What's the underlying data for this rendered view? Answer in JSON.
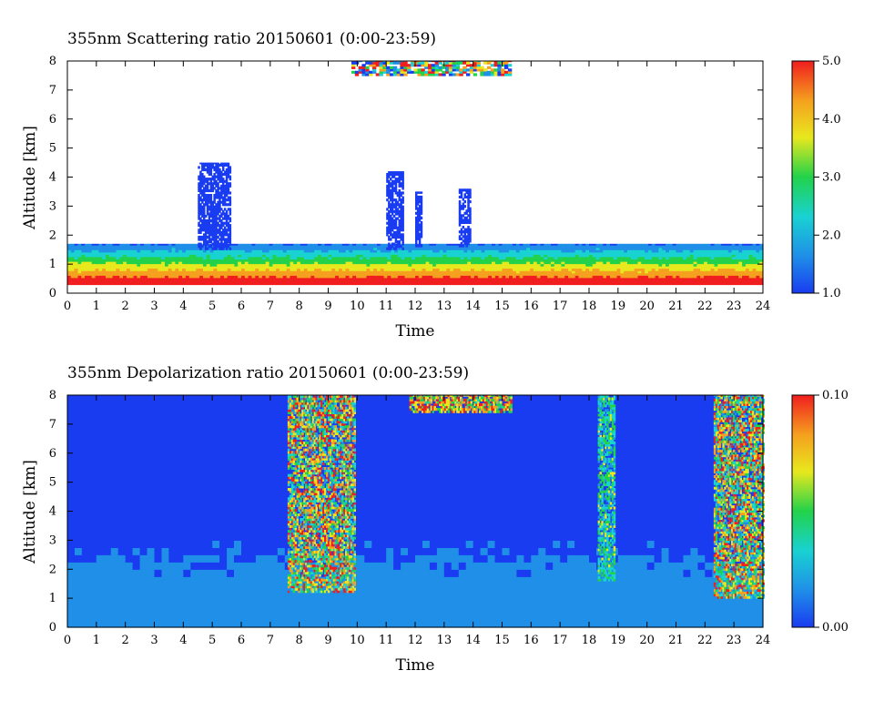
{
  "chart_data": [
    {
      "type": "heatmap",
      "title": "355nm Scattering ratio  20150601 (0:00-23:59)",
      "xlabel": "Time",
      "ylabel": "Altitude [km]",
      "xlim": [
        0,
        24
      ],
      "ylim": [
        0,
        8
      ],
      "x_ticks": [
        "0",
        "1",
        "2",
        "3",
        "4",
        "5",
        "6",
        "7",
        "8",
        "9",
        "10",
        "11",
        "12",
        "13",
        "14",
        "15",
        "16",
        "17",
        "18",
        "19",
        "20",
        "21",
        "22",
        "23",
        "24"
      ],
      "y_ticks": [
        "0",
        "1",
        "2",
        "3",
        "4",
        "5",
        "6",
        "7",
        "8"
      ],
      "colorbar": {
        "min": 1.0,
        "max": 5.0,
        "tick_labels": [
          "1.0",
          "2.0",
          "3.0",
          "4.0",
          "5.0"
        ]
      },
      "colormap": [
        "#1a3cf0",
        "#1f8fe8",
        "#19d2d2",
        "#22d24a",
        "#e8e81e",
        "#f5a01e",
        "#f01e1e"
      ],
      "features": [
        {
          "label": "boundary layer",
          "time_range": [
            0,
            24
          ],
          "altitude_range": [
            0.3,
            1.7
          ],
          "value_range": [
            1.5,
            5.0
          ]
        },
        {
          "label": "cloud column",
          "time_range": [
            4.5,
            5.6
          ],
          "altitude_range": [
            1.5,
            4.5
          ],
          "value_range": [
            1.0,
            1.3
          ]
        },
        {
          "label": "cloud column",
          "time_range": [
            11.0,
            11.6
          ],
          "altitude_range": [
            1.5,
            4.2
          ],
          "value_range": [
            1.0,
            1.3
          ]
        },
        {
          "label": "cloud column",
          "time_range": [
            12.0,
            12.2
          ],
          "altitude_range": [
            1.6,
            3.5
          ],
          "value_range": [
            1.0,
            1.3
          ]
        },
        {
          "label": "cloud column",
          "time_range": [
            13.5,
            13.9
          ],
          "altitude_range": [
            1.6,
            3.6
          ],
          "value_range": [
            1.0,
            1.3
          ]
        },
        {
          "label": "high cloud",
          "time_range": [
            9.8,
            15.3
          ],
          "altitude_range": [
            7.5,
            8.0
          ],
          "value_range": [
            1.0,
            5.0
          ]
        }
      ]
    },
    {
      "type": "heatmap",
      "title": "355nm Depolarization ratio  20150601 (0:00-23:59)",
      "xlabel": "Time",
      "ylabel": "Altitude [km]",
      "xlim": [
        0,
        24
      ],
      "ylim": [
        0,
        8
      ],
      "x_ticks": [
        "0",
        "1",
        "2",
        "3",
        "4",
        "5",
        "6",
        "7",
        "8",
        "9",
        "10",
        "11",
        "12",
        "13",
        "14",
        "15",
        "16",
        "17",
        "18",
        "19",
        "20",
        "21",
        "22",
        "23",
        "24"
      ],
      "y_ticks": [
        "0",
        "1",
        "2",
        "3",
        "4",
        "5",
        "6",
        "7",
        "8"
      ],
      "colorbar": {
        "min": 0.0,
        "max": 0.1,
        "tick_labels": [
          "0.00",
          "0.10"
        ]
      },
      "colormap": [
        "#1a3cf0",
        "#1f8fe8",
        "#19d2d2",
        "#22d24a",
        "#e8e81e",
        "#f5a01e",
        "#f01e1e"
      ],
      "features": [
        {
          "label": "background",
          "time_range": [
            0,
            24
          ],
          "altitude_range": [
            0,
            8
          ],
          "value_range": [
            0.0,
            0.02
          ]
        },
        {
          "label": "noisy column",
          "time_range": [
            7.6,
            9.9
          ],
          "altitude_range": [
            1.2,
            8.0
          ],
          "value_range": [
            0.02,
            0.1
          ]
        },
        {
          "label": "noisy column",
          "time_range": [
            18.3,
            18.9
          ],
          "altitude_range": [
            1.6,
            8.0
          ],
          "value_range": [
            0.02,
            0.06
          ]
        },
        {
          "label": "noisy column",
          "time_range": [
            22.3,
            24.0
          ],
          "altitude_range": [
            1.0,
            8.0
          ],
          "value_range": [
            0.02,
            0.1
          ]
        },
        {
          "label": "high cloud",
          "time_range": [
            11.8,
            15.3
          ],
          "altitude_range": [
            7.4,
            8.0
          ],
          "value_range": [
            0.04,
            0.1
          ]
        }
      ]
    }
  ]
}
